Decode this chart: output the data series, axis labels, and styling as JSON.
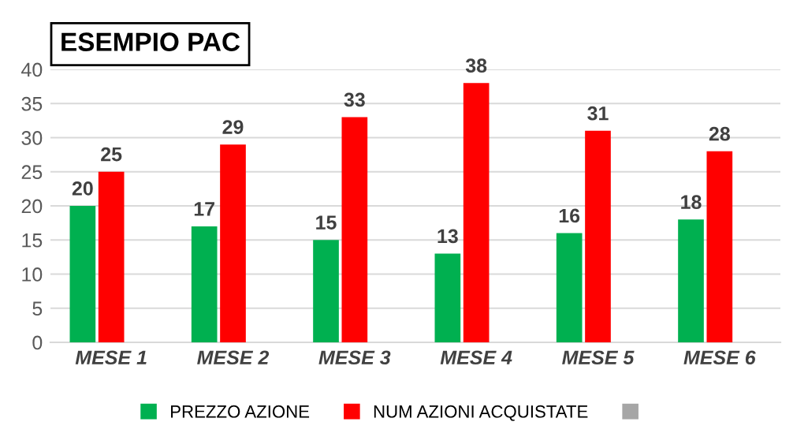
{
  "chart_data": {
    "type": "bar",
    "title": "ESEMPIO PAC",
    "categories": [
      "MESE 1",
      "MESE 2",
      "MESE 3",
      "MESE 4",
      "MESE 5",
      "MESE 6"
    ],
    "series": [
      {
        "name": "PREZZO AZIONE",
        "color": "#00b050",
        "values": [
          20,
          17,
          15,
          13,
          16,
          18
        ]
      },
      {
        "name": "NUM AZIONI ACQUISTATE",
        "color": "#ff0000",
        "values": [
          25,
          29,
          33,
          38,
          31,
          28
        ]
      },
      {
        "color": "#a6a6a6",
        "values": [
          null,
          null,
          null,
          null,
          null,
          null
        ]
      }
    ],
    "ylim": [
      0,
      40
    ],
    "yticks": [
      0,
      5,
      10,
      15,
      20,
      25,
      30,
      35,
      40
    ],
    "grid": "y",
    "legend": "bottom",
    "data_labels": true
  }
}
